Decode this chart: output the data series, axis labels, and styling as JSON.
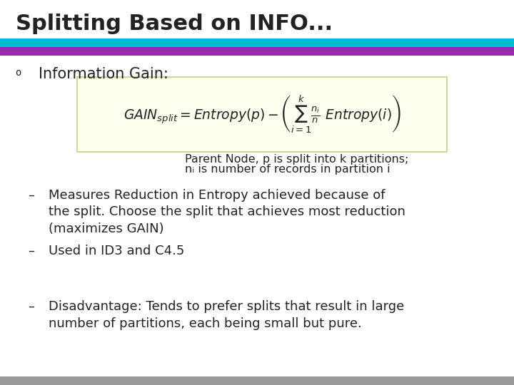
{
  "title": "Splitting Based on INFO...",
  "title_fontsize": 22,
  "bg_color": "#ffffff",
  "cyan_bar_color": "#00bcd4",
  "purple_bar_color": "#9c27b0",
  "bullet_text": "Information Gain:",
  "formula_box_color": "#fffff0",
  "formula_box_edge": "#cccc88",
  "note_line1": "Parent Node, p is split into k partitions;",
  "note_line2": "nᵢ is number of records in partition i",
  "dash_items": [
    "Measures Reduction in Entropy achieved because of\nthe split. Choose the split that achieves most reduction\n(maximizes GAIN)",
    "Used in ID3 and C4.5",
    "Disadvantage: Tends to prefer splits that result in large\nnumber of partitions, each being small but pure."
  ],
  "text_color": "#222222",
  "dash_fontsize": 13,
  "note_fontsize": 11.5,
  "bullet_fontsize": 15,
  "bottom_bar_color": "#999999"
}
